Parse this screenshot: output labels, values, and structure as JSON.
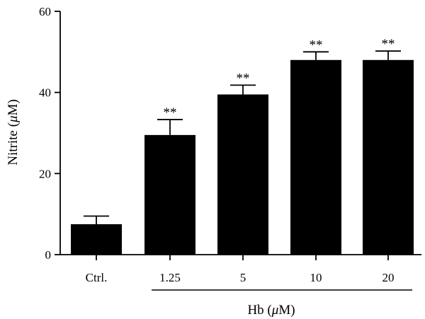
{
  "chart_data": {
    "type": "bar",
    "categories": [
      "Ctrl.",
      "1.25",
      "5",
      "10",
      "20"
    ],
    "values": [
      7.5,
      29.5,
      39.5,
      48.0,
      48.0
    ],
    "error_upper": [
      9.5,
      33.3,
      41.8,
      50.0,
      50.2
    ],
    "significance": [
      "",
      "**",
      "**",
      "**",
      "**"
    ],
    "ylabel_prefix": "Nitrite (",
    "ylabel_unit": "μ",
    "ylabel_suffix": "M)",
    "group_label_prefix": "Hb (",
    "group_label_unit": "μ",
    "group_label_suffix": "M)",
    "ylim": [
      0,
      60
    ],
    "yticks": [
      "0",
      "20",
      "40",
      "60"
    ],
    "bar_color": "#000000",
    "grid": false
  }
}
